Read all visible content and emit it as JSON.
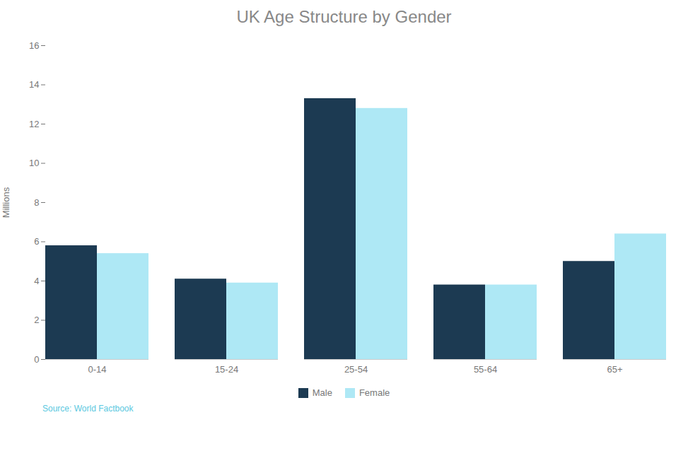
{
  "chart_data": {
    "type": "bar",
    "title": "UK Age Structure by Gender",
    "categories": [
      "0-14",
      "15-24",
      "25-54",
      "55-64",
      "65+"
    ],
    "series": [
      {
        "name": "Male",
        "color": "#1C3A52",
        "values": [
          5.8,
          4.1,
          13.3,
          3.8,
          5.0
        ]
      },
      {
        "name": "Female",
        "color": "#AEE8F5",
        "values": [
          5.4,
          3.9,
          12.8,
          3.8,
          6.4
        ]
      }
    ],
    "ylabel": "Millions",
    "ylim": [
      0,
      16
    ],
    "yticks": [
      0,
      2,
      4,
      6,
      8,
      10,
      12,
      14,
      16
    ],
    "grid": false,
    "legend": "bottom",
    "caption": "Source: World Factbook"
  }
}
